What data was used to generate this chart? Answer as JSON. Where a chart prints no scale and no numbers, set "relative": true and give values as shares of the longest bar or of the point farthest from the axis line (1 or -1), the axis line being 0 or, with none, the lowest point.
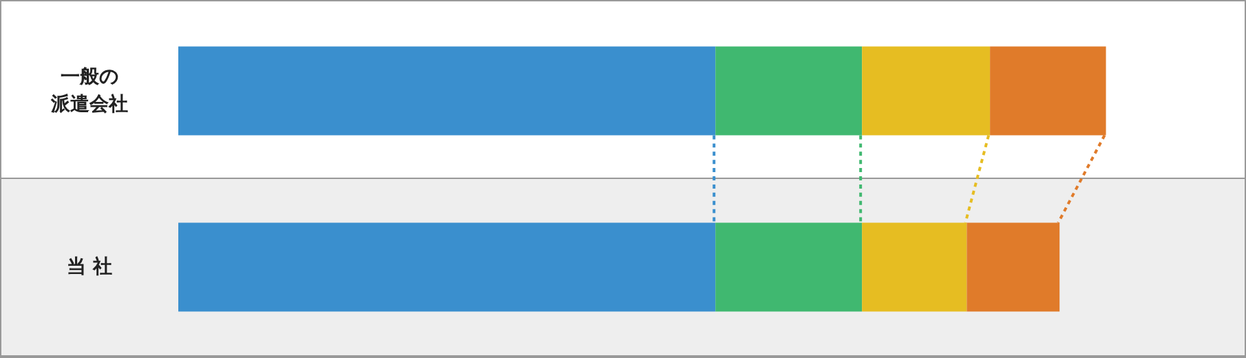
{
  "chart_data": {
    "type": "bar",
    "orientation": "horizontal",
    "stacked": true,
    "relative": true,
    "categories": [
      "一般の派遣会社",
      "当 社"
    ],
    "series": [
      {
        "color": "#3a8fce",
        "values": [
          0.579,
          0.579
        ]
      },
      {
        "color": "#40b870",
        "values": [
          0.158,
          0.158
        ]
      },
      {
        "color": "#e6bd22",
        "values": [
          0.138,
          0.113
        ]
      },
      {
        "color": "#e07b2a",
        "values": [
          0.125,
          0.1
        ]
      }
    ]
  }
}
